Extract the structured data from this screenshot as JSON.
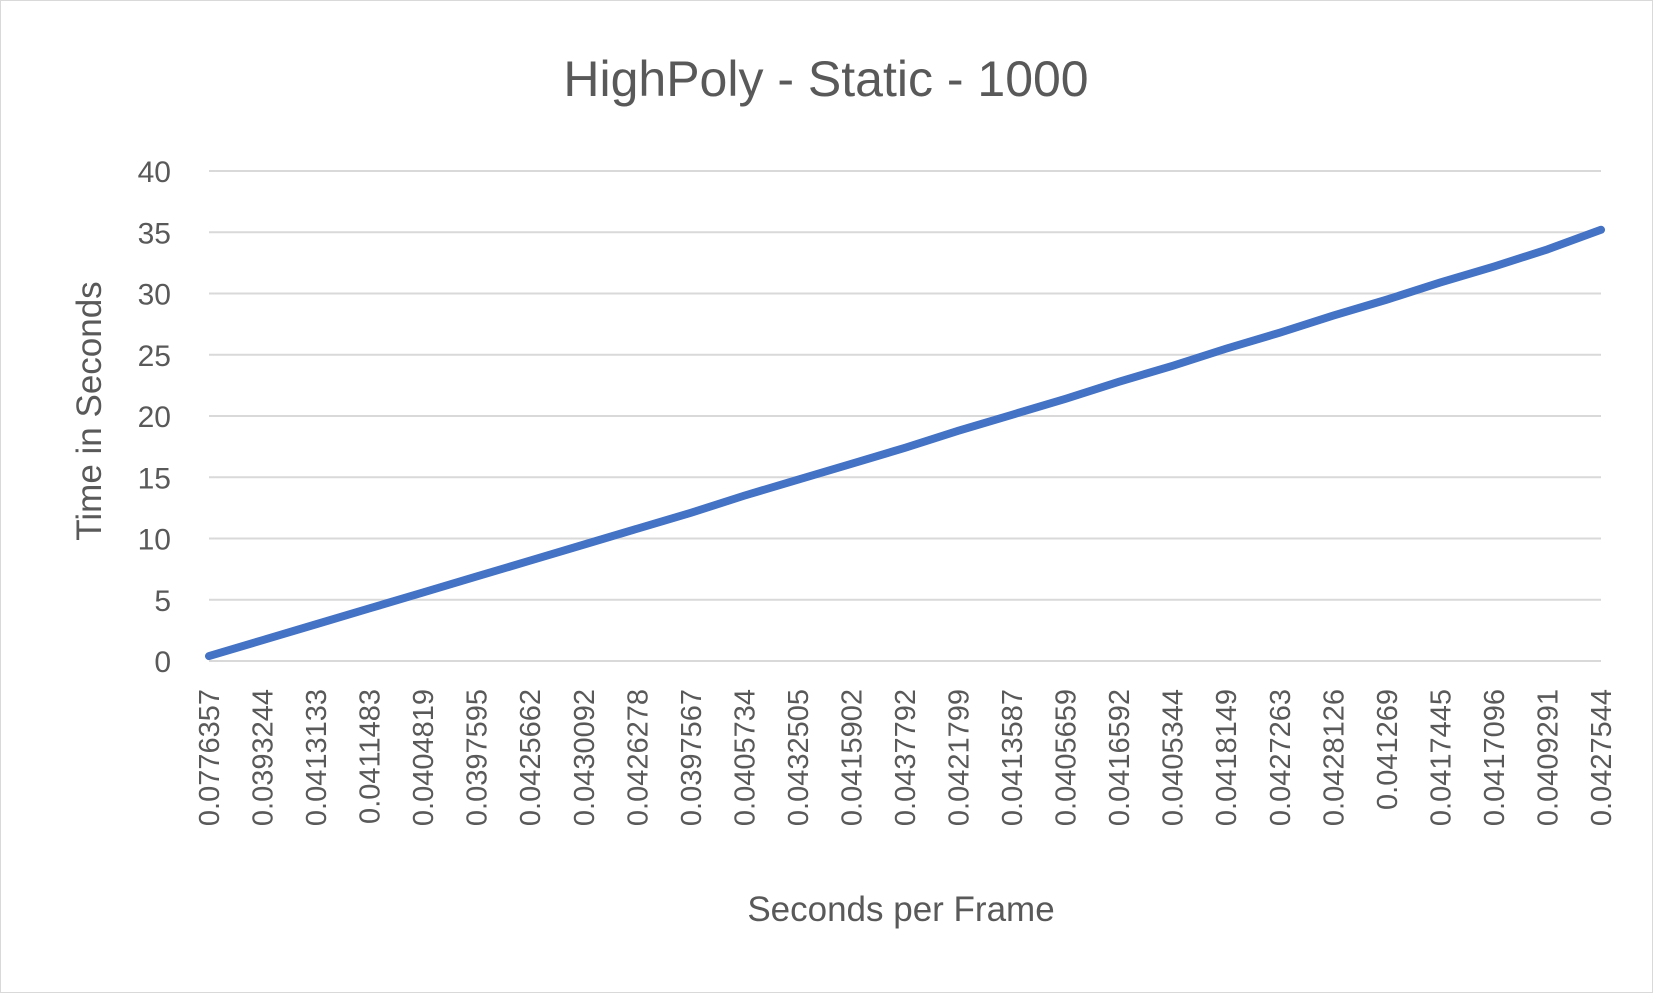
{
  "chart_data": {
    "type": "line",
    "title": "HighPoly - Static - 1000",
    "xlabel": "Seconds per Frame",
    "ylabel": "Time in Seconds",
    "ylim": [
      0,
      40
    ],
    "yticks": [
      0,
      5,
      10,
      15,
      20,
      25,
      30,
      35,
      40
    ],
    "grid": true,
    "legend": "none",
    "colors": {
      "series": "#4472c4",
      "grid": "#d9d9d9",
      "text": "#595959"
    },
    "categories": [
      "0.0776357",
      "0.0393244",
      "0.0413133",
      "0.0411483",
      "0.0404819",
      "0.0397595",
      "0.0425662",
      "0.0430092",
      "0.0426278",
      "0.0397567",
      "0.0405734",
      "0.0432505",
      "0.0415902",
      "0.0437792",
      "0.0421799",
      "0.0413587",
      "0.0405659",
      "0.0416592",
      "0.0405344",
      "0.0418149",
      "0.0427263",
      "0.0428126",
      "0.041269",
      "0.0417445",
      "0.0417096",
      "0.0409291",
      "0.0427544"
    ],
    "series": [
      {
        "values": [
          0.4,
          1.7,
          3.0,
          4.3,
          5.6,
          6.9,
          8.2,
          9.5,
          10.8,
          12.1,
          13.5,
          14.8,
          16.1,
          17.4,
          18.8,
          20.1,
          21.4,
          22.8,
          24.1,
          25.5,
          26.8,
          28.2,
          29.5,
          30.9,
          32.2,
          33.6,
          35.2
        ]
      }
    ]
  }
}
